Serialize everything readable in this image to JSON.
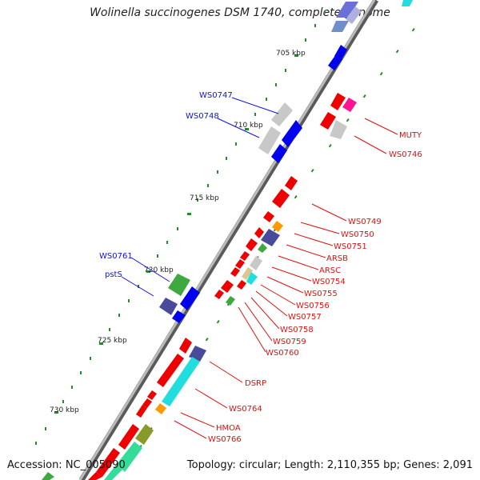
{
  "title": "Wolinella succinogenes DSM 1740, complete genome",
  "footer": {
    "accession": "Accession: NC_005090",
    "topology": "Topology: circular; Length: 2,110,355 bp; Genes: 2,091"
  },
  "scale_labels": [
    "705 kbp",
    "710 kbp",
    "715 kbp",
    "720 kbp",
    "725 kbp",
    "730 kbp"
  ],
  "gene_labels_right": [
    "MUTY",
    "WS0746",
    "WS0749",
    "WS0750",
    "WS0751",
    "ARSB",
    "ARSC",
    "WS0754",
    "WS0755",
    "WS0756",
    "WS0757",
    "WS0758",
    "WS0759",
    "WS0760",
    "DSRP",
    "WS0764",
    "HMOA",
    "WS0766"
  ],
  "gene_labels_left": [
    "WS0747",
    "WS0748",
    "WS0761",
    "pstS"
  ],
  "colors": {
    "plus_strand": "#0000ee",
    "minus_strand": "#ee0000",
    "backbone": "#9a9a9a",
    "ticks": "#2a8a2a",
    "label_red": "#e01010",
    "label_blue": "#1010e0"
  }
}
